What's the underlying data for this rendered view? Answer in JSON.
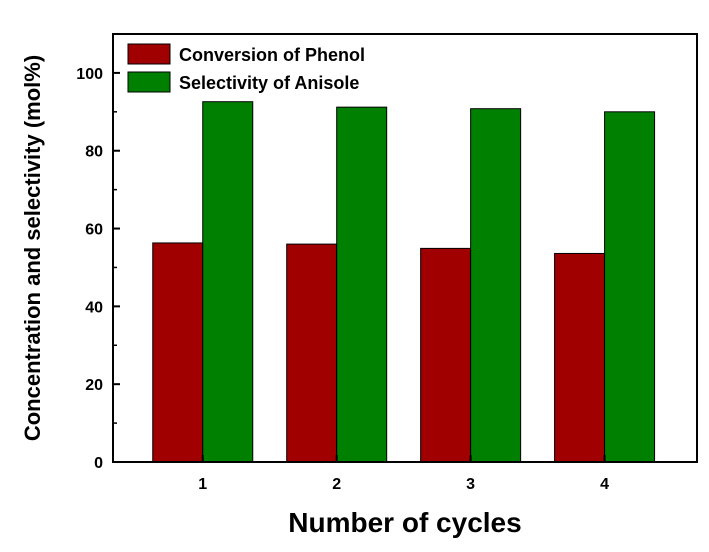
{
  "chart_data": {
    "type": "bar",
    "title": "",
    "xlabel": "Number of cycles",
    "ylabel": "Concentration and selectivity (mol%)",
    "categories": [
      "1",
      "2",
      "3",
      "4"
    ],
    "series": [
      {
        "name": "Conversion of Phenol",
        "color": "#a00000",
        "values": [
          56.3,
          56.0,
          54.9,
          53.6
        ]
      },
      {
        "name": "Selectivity of Anisole",
        "color": "#008000",
        "values": [
          92.6,
          91.2,
          90.8,
          90.0
        ]
      }
    ],
    "ylim": [
      0,
      110
    ],
    "yticks": [
      0,
      20,
      40,
      60,
      80,
      100
    ],
    "grid": false,
    "legend": "top-left"
  }
}
